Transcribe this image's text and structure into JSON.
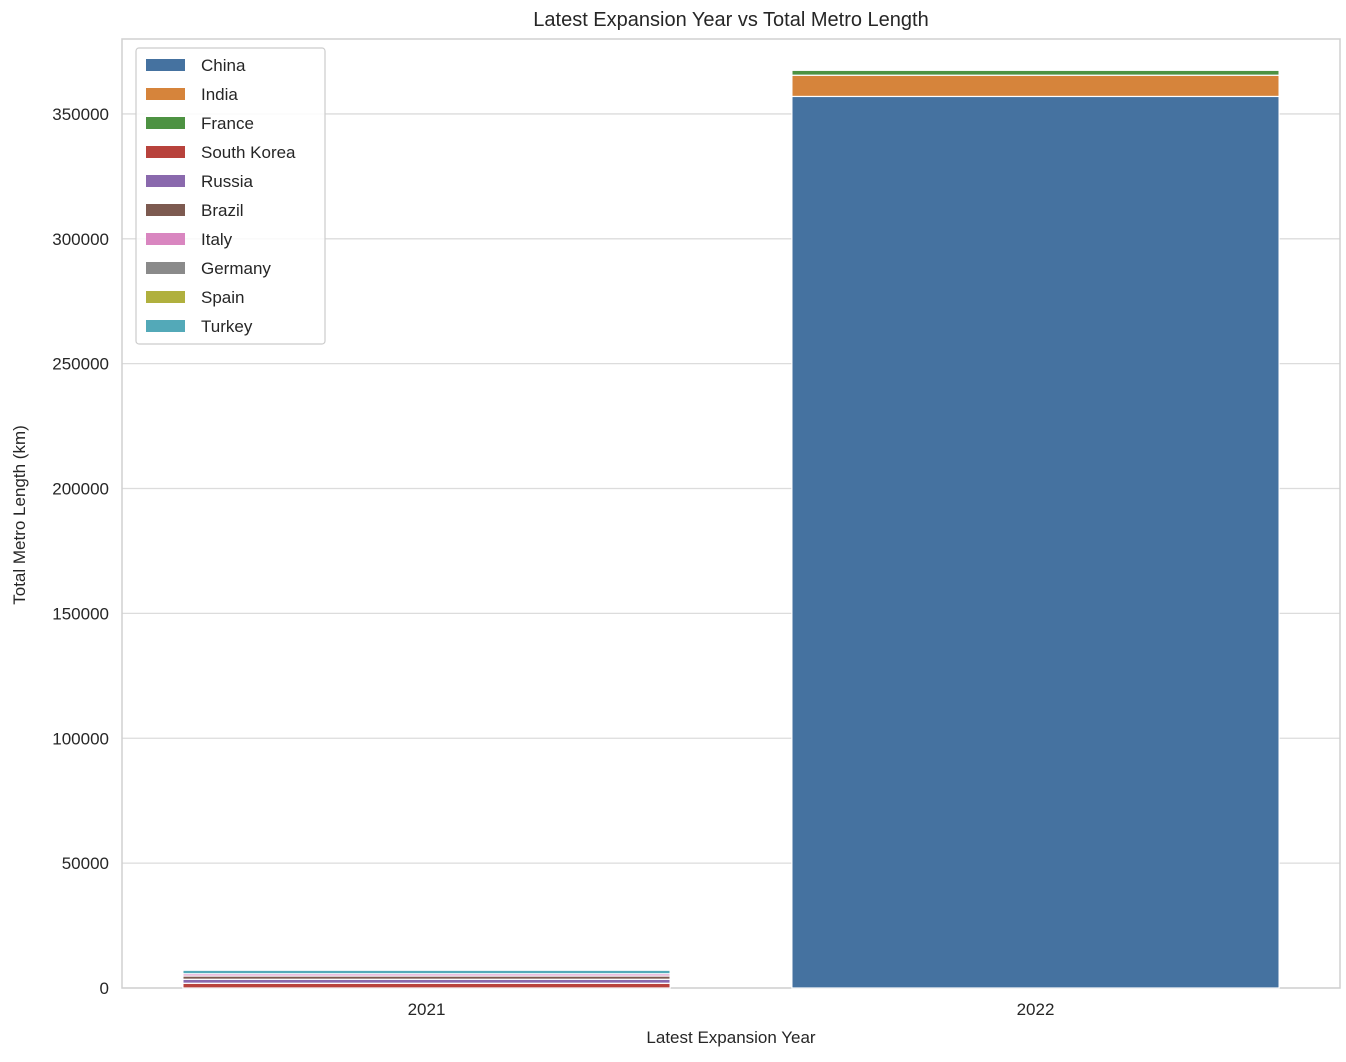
{
  "chart_data": {
    "type": "bar",
    "stacked": true,
    "title": "Latest Expansion Year vs Total Metro Length",
    "xlabel": "Latest Expansion Year",
    "ylabel": "Total Metro Length (km)",
    "categories": [
      "2021",
      "2022"
    ],
    "ylim": [
      0,
      380000
    ],
    "yticks": [
      0,
      50000,
      100000,
      150000,
      200000,
      250000,
      300000,
      350000
    ],
    "grid": true,
    "legend_position": "top-left",
    "series": [
      {
        "name": "China",
        "color": "#4572a0",
        "values": [
          0,
          357000
        ]
      },
      {
        "name": "India",
        "color": "#d6843b",
        "values": [
          0,
          8500
        ]
      },
      {
        "name": "France",
        "color": "#4d9242",
        "values": [
          0,
          2000
        ]
      },
      {
        "name": "South Korea",
        "color": "#b8423c",
        "values": [
          1900,
          0
        ]
      },
      {
        "name": "Russia",
        "color": "#8a69ad",
        "values": [
          1600,
          0
        ]
      },
      {
        "name": "Brazil",
        "color": "#7d5a50",
        "values": [
          1300,
          0
        ]
      },
      {
        "name": "Italy",
        "color": "#d986c0",
        "values": [
          900,
          0
        ]
      },
      {
        "name": "Germany",
        "color": "#8a8a8a",
        "values": [
          0,
          200
        ]
      },
      {
        "name": "Spain",
        "color": "#b0b03e",
        "values": [
          0,
          200
        ]
      },
      {
        "name": "Turkey",
        "color": "#53a9b8",
        "values": [
          1400,
          0
        ]
      }
    ]
  }
}
